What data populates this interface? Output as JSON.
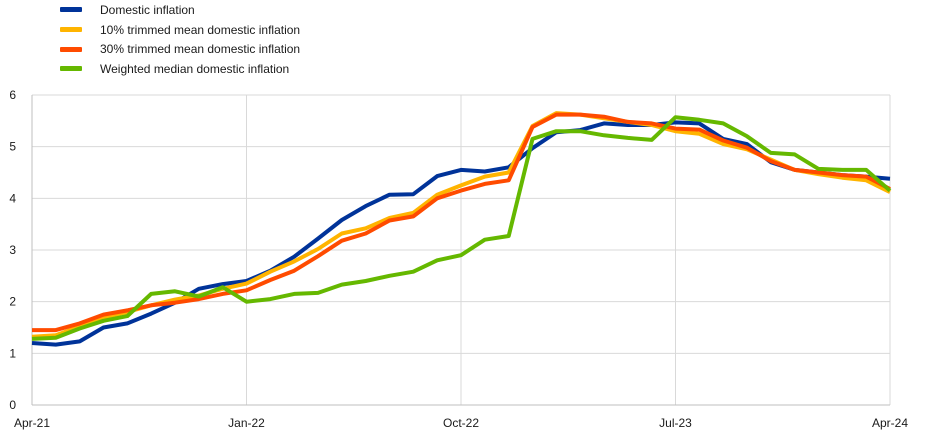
{
  "chart_data": {
    "type": "line",
    "title": "",
    "xlabel": "",
    "ylabel": "",
    "ylim": [
      0,
      6
    ],
    "yticks": [
      0,
      1,
      2,
      3,
      4,
      5,
      6
    ],
    "grid": true,
    "legend_position": "top-left",
    "x_tick_labels": [
      "Apr-21",
      "Jan-22",
      "Oct-22",
      "Jul-23",
      "Apr-24"
    ],
    "x_tick_index": [
      0,
      9,
      18,
      27,
      36
    ],
    "x": [
      "Apr-21",
      "May-21",
      "Jun-21",
      "Jul-21",
      "Aug-21",
      "Sep-21",
      "Oct-21",
      "Nov-21",
      "Dec-21",
      "Jan-22",
      "Feb-22",
      "Mar-22",
      "Apr-22",
      "May-22",
      "Jun-22",
      "Jul-22",
      "Aug-22",
      "Sep-22",
      "Oct-22",
      "Nov-22",
      "Dec-22",
      "Jan-23",
      "Feb-23",
      "Mar-23",
      "Apr-23",
      "May-23",
      "Jun-23",
      "Jul-23",
      "Aug-23",
      "Sep-23",
      "Oct-23",
      "Nov-23",
      "Dec-23",
      "Jan-24",
      "Feb-24",
      "Mar-24",
      "Apr-24"
    ],
    "series": [
      {
        "name": "Domestic inflation",
        "color": "#003399",
        "values": [
          1.2,
          1.17,
          1.23,
          1.5,
          1.58,
          1.77,
          1.98,
          2.25,
          2.34,
          2.4,
          2.6,
          2.87,
          3.22,
          3.58,
          3.85,
          4.07,
          4.08,
          4.43,
          4.55,
          4.52,
          4.6,
          4.97,
          5.28,
          5.32,
          5.45,
          5.42,
          5.42,
          5.47,
          5.45,
          5.15,
          5.05,
          4.7,
          4.55,
          4.5,
          4.45,
          4.42,
          4.38
        ]
      },
      {
        "name": "10% trimmed mean domestic inflation",
        "color": "#FFB400",
        "values": [
          1.32,
          1.35,
          1.52,
          1.7,
          1.8,
          1.93,
          2.04,
          2.12,
          2.25,
          2.35,
          2.58,
          2.78,
          3.02,
          3.32,
          3.42,
          3.62,
          3.72,
          4.07,
          4.25,
          4.42,
          4.5,
          5.4,
          5.65,
          5.62,
          5.55,
          5.48,
          5.42,
          5.3,
          5.25,
          5.05,
          4.95,
          4.75,
          4.55,
          4.47,
          4.4,
          4.35,
          4.12
        ]
      },
      {
        "name": "30% trimmed mean domestic inflation",
        "color": "#FF4B00",
        "values": [
          1.45,
          1.45,
          1.58,
          1.75,
          1.83,
          1.93,
          1.98,
          2.05,
          2.15,
          2.22,
          2.42,
          2.6,
          2.88,
          3.18,
          3.32,
          3.57,
          3.65,
          4.0,
          4.15,
          4.28,
          4.35,
          5.38,
          5.62,
          5.62,
          5.58,
          5.48,
          5.45,
          5.35,
          5.33,
          5.12,
          4.98,
          4.72,
          4.55,
          4.5,
          4.45,
          4.42,
          4.18
        ]
      },
      {
        "name": "Weighted median domestic inflation",
        "color": "#65B800",
        "values": [
          1.28,
          1.3,
          1.48,
          1.63,
          1.72,
          2.15,
          2.2,
          2.1,
          2.28,
          2.0,
          2.05,
          2.15,
          2.17,
          2.33,
          2.4,
          2.5,
          2.58,
          2.8,
          2.9,
          3.2,
          3.27,
          5.15,
          5.3,
          5.3,
          5.22,
          5.17,
          5.13,
          5.57,
          5.52,
          5.45,
          5.2,
          4.88,
          4.85,
          4.57,
          4.55,
          4.55,
          4.15
        ]
      }
    ]
  }
}
